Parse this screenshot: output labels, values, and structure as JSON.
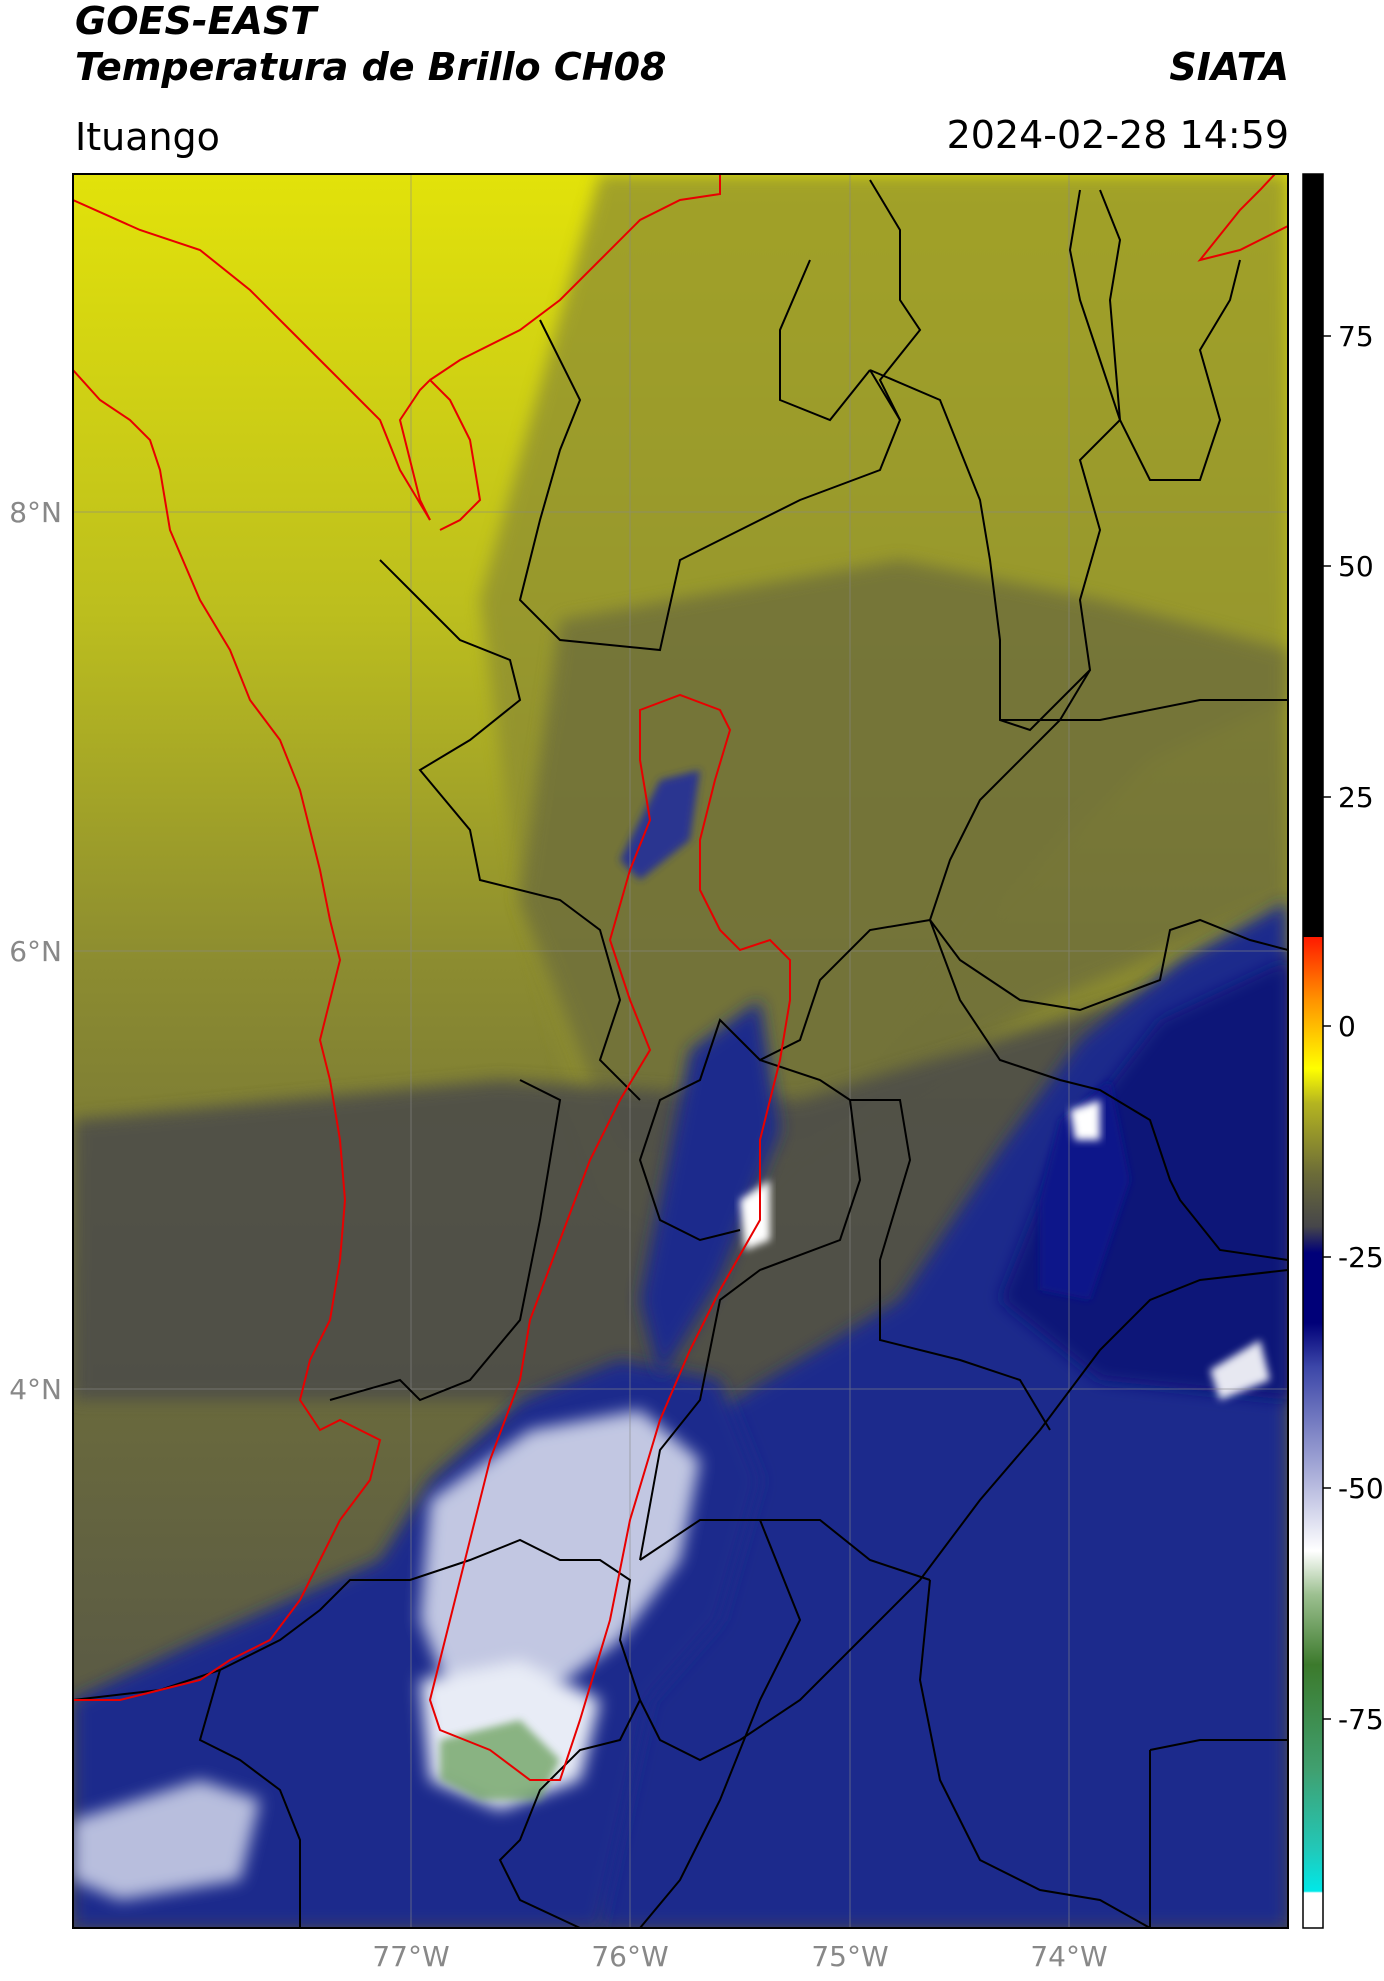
{
  "header": {
    "title_line1": "GOES-EAST",
    "title_line2": "Temperatura de Brillo CH08",
    "organization": "SIATA",
    "region": "Ituango",
    "datetime": "2024-02-28 14:59"
  },
  "map": {
    "lat_labels": [
      "8°N",
      "6°N",
      "4°N"
    ],
    "lon_labels": [
      "77°W",
      "76°W",
      "75°W",
      "74°W"
    ],
    "colors": {
      "warm_yellow": "#d8dc14",
      "olive": "#8c8c30",
      "dark_olive": "#5c5c44",
      "cloud_blue": "#1e2a8c",
      "deep_blue": "#0a1478",
      "cloud_white": "#e8ecf6",
      "cloud_green": "#6aa05c",
      "border_black": "#000000",
      "coast_red": "#e80000"
    }
  },
  "colorbar": {
    "ticks": [
      "75",
      "50",
      "25",
      "0",
      "-25",
      "-50",
      "-75"
    ],
    "colors": {
      "black": "#000000",
      "red": "#ff0000",
      "orange": "#ff9000",
      "yellow": "#ffff00",
      "olive": "#5a5a40",
      "navy": "#000078",
      "lavender": "#a8acd8",
      "white": "#ffffff",
      "green": "#3c8c30",
      "cyan": "#00e0e0"
    }
  }
}
